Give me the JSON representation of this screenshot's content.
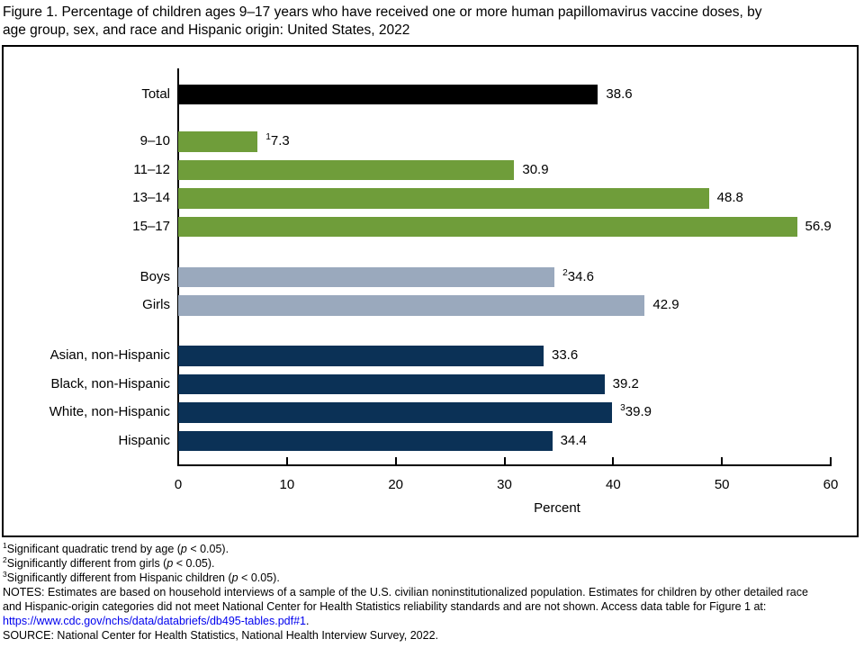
{
  "title_lines": [
    "Figure 1. Percentage of children ages 9–17 years who have received one or more human papillomavirus vaccine doses, by",
    "age group, sex, and race and Hispanic origin: United States, 2022"
  ],
  "chart_data": {
    "type": "bar",
    "orientation": "horizontal",
    "xlabel": "Percent",
    "xlim": [
      0,
      60
    ],
    "xticks": [
      0,
      10,
      20,
      30,
      40,
      50,
      60
    ],
    "grid": false,
    "legend": false,
    "bar_colors": {
      "total": "#000000",
      "age_group": "#6f9d3a",
      "sex": "#9aa9bd",
      "race_hispanic_origin": "#0b3156"
    },
    "groups": [
      {
        "name": "total",
        "color": "#000000",
        "bars": [
          {
            "label": "Total",
            "value": 38.6,
            "value_label": "38.6",
            "footnote_marker": ""
          }
        ]
      },
      {
        "name": "age-group",
        "color": "#6f9d3a",
        "bars": [
          {
            "label": "9–10",
            "value": 7.3,
            "value_label": "7.3",
            "footnote_marker": "1"
          },
          {
            "label": "11–12",
            "value": 30.9,
            "value_label": "30.9",
            "footnote_marker": ""
          },
          {
            "label": "13–14",
            "value": 48.8,
            "value_label": "48.8",
            "footnote_marker": ""
          },
          {
            "label": "15–17",
            "value": 56.9,
            "value_label": "56.9",
            "footnote_marker": ""
          }
        ]
      },
      {
        "name": "sex",
        "color": "#9aa9bd",
        "bars": [
          {
            "label": "Boys",
            "value": 34.6,
            "value_label": "34.6",
            "footnote_marker": "2"
          },
          {
            "label": "Girls",
            "value": 42.9,
            "value_label": "42.9",
            "footnote_marker": ""
          }
        ]
      },
      {
        "name": "race-hispanic-origin",
        "color": "#0b3156",
        "bars": [
          {
            "label": "Asian, non-Hispanic",
            "value": 33.6,
            "value_label": "33.6",
            "footnote_marker": ""
          },
          {
            "label": "Black, non-Hispanic",
            "value": 39.2,
            "value_label": "39.2",
            "footnote_marker": ""
          },
          {
            "label": "White, non-Hispanic",
            "value": 39.9,
            "value_label": "39.9",
            "footnote_marker": "3"
          },
          {
            "label": "Hispanic",
            "value": 34.4,
            "value_label": "34.4",
            "footnote_marker": ""
          }
        ]
      }
    ]
  },
  "footnotes": [
    {
      "marker": "1",
      "before_italic": "Significant quadratic trend by age (",
      "italic": "p",
      "after_italic": " < 0.05)."
    },
    {
      "marker": "2",
      "before_italic": "Significantly different from girls (",
      "italic": "p",
      "after_italic": " < 0.05)."
    },
    {
      "marker": "3",
      "before_italic": "Significantly different from Hispanic children (",
      "italic": "p",
      "after_italic": " < 0.05)."
    }
  ],
  "notes_lines": [
    "NOTES: Estimates are based on household interviews of a sample of the U.S. civilian noninstitutionalized population. Estimates for children by other detailed race",
    "and Hispanic-origin categories did not meet National Center for Health Statistics reliability standards and are not shown. Access data table for Figure 1 at:"
  ],
  "link": {
    "text": "https://www.cdc.gov/nchs/data/databriefs/db495-tables.pdf#1",
    "suffix": ".",
    "color": "#0000ee"
  },
  "source_line": "SOURCE: National Center for Health Statistics, National Health Interview Survey, 2022."
}
